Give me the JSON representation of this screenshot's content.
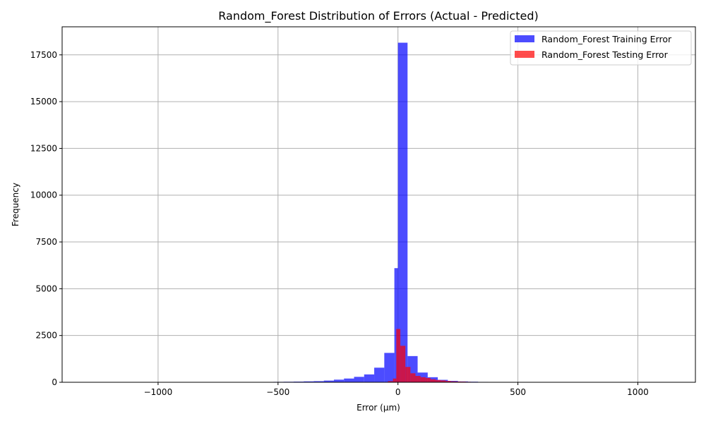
{
  "chart_data": {
    "type": "bar",
    "title": "Random_Forest Distribution of Errors (Actual - Predicted)",
    "xlabel": "Error (µm)",
    "ylabel": "Frequency",
    "xlim": [
      -1400,
      1240
    ],
    "ylim": [
      0,
      19000
    ],
    "xticks": [
      -1000,
      -500,
      0,
      500,
      1000
    ],
    "xtick_labels": [
      "−1000",
      "−500",
      "0",
      "500",
      "1000"
    ],
    "yticks": [
      0,
      2500,
      5000,
      7500,
      10000,
      12500,
      15000,
      17500
    ],
    "ytick_labels": [
      "0",
      "2500",
      "5000",
      "7500",
      "10000",
      "12500",
      "15000",
      "17500"
    ],
    "grid": true,
    "legend_position": "top-right",
    "series": [
      {
        "name": "Random_Forest Training Error",
        "color": "#0000ff",
        "opacity": 0.7,
        "bins": [
          {
            "x0": -770,
            "x1": -728,
            "value": 10
          },
          {
            "x0": -645,
            "x1": -603,
            "value": 12
          },
          {
            "x0": -603,
            "x1": -561,
            "value": 15
          },
          {
            "x0": -561,
            "x1": -519,
            "value": 18
          },
          {
            "x0": -519,
            "x1": -477,
            "value": 22
          },
          {
            "x0": -477,
            "x1": -435,
            "value": 28
          },
          {
            "x0": -435,
            "x1": -393,
            "value": 35
          },
          {
            "x0": -393,
            "x1": -351,
            "value": 48
          },
          {
            "x0": -351,
            "x1": -309,
            "value": 60
          },
          {
            "x0": -309,
            "x1": -267,
            "value": 90
          },
          {
            "x0": -267,
            "x1": -225,
            "value": 140
          },
          {
            "x0": -225,
            "x1": -183,
            "value": 200
          },
          {
            "x0": -183,
            "x1": -141,
            "value": 290
          },
          {
            "x0": -141,
            "x1": -99,
            "value": 420
          },
          {
            "x0": -99,
            "x1": -57,
            "value": 780
          },
          {
            "x0": -57,
            "x1": -15,
            "value": 1570
          },
          {
            "x0": -15,
            "x1": 0,
            "value": 6100
          },
          {
            "x0": 0,
            "x1": 40,
            "value": 18150
          },
          {
            "x0": 40,
            "x1": 82,
            "value": 1400
          },
          {
            "x0": 82,
            "x1": 124,
            "value": 520
          },
          {
            "x0": 124,
            "x1": 166,
            "value": 270
          },
          {
            "x0": 166,
            "x1": 208,
            "value": 130
          },
          {
            "x0": 208,
            "x1": 250,
            "value": 75
          },
          {
            "x0": 250,
            "x1": 292,
            "value": 45
          },
          {
            "x0": 292,
            "x1": 334,
            "value": 30
          },
          {
            "x0": 334,
            "x1": 376,
            "value": 20
          },
          {
            "x0": 376,
            "x1": 418,
            "value": 15
          },
          {
            "x0": 418,
            "x1": 460,
            "value": 12
          }
        ]
      },
      {
        "name": "Random_Forest Testing Error",
        "color": "#ff0000",
        "opacity": 0.7,
        "bins": [
          {
            "x0": -42,
            "x1": -21,
            "value": 60
          },
          {
            "x0": -21,
            "x1": -7,
            "value": 200
          },
          {
            "x0": -7,
            "x1": 10,
            "value": 2850
          },
          {
            "x0": 10,
            "x1": 31,
            "value": 1950
          },
          {
            "x0": 31,
            "x1": 52,
            "value": 820
          },
          {
            "x0": 52,
            "x1": 73,
            "value": 480
          },
          {
            "x0": 73,
            "x1": 94,
            "value": 340
          },
          {
            "x0": 94,
            "x1": 115,
            "value": 270
          },
          {
            "x0": 115,
            "x1": 136,
            "value": 230
          },
          {
            "x0": 136,
            "x1": 157,
            "value": 160
          },
          {
            "x0": 157,
            "x1": 178,
            "value": 120
          },
          {
            "x0": 178,
            "x1": 199,
            "value": 100
          },
          {
            "x0": 199,
            "x1": 220,
            "value": 70
          },
          {
            "x0": 220,
            "x1": 241,
            "value": 50
          },
          {
            "x0": 241,
            "x1": 262,
            "value": 40
          },
          {
            "x0": 262,
            "x1": 283,
            "value": 35
          },
          {
            "x0": 283,
            "x1": 304,
            "value": 25
          },
          {
            "x0": 304,
            "x1": 325,
            "value": 20
          },
          {
            "x0": 325,
            "x1": 346,
            "value": 18
          },
          {
            "x0": 346,
            "x1": 367,
            "value": 15
          },
          {
            "x0": 367,
            "x1": 388,
            "value": 12
          },
          {
            "x0": 388,
            "x1": 409,
            "value": 10
          },
          {
            "x0": 409,
            "x1": 430,
            "value": 8
          },
          {
            "x0": 430,
            "x1": 451,
            "value": 6
          },
          {
            "x0": 555,
            "x1": 576,
            "value": 12
          }
        ]
      }
    ]
  }
}
